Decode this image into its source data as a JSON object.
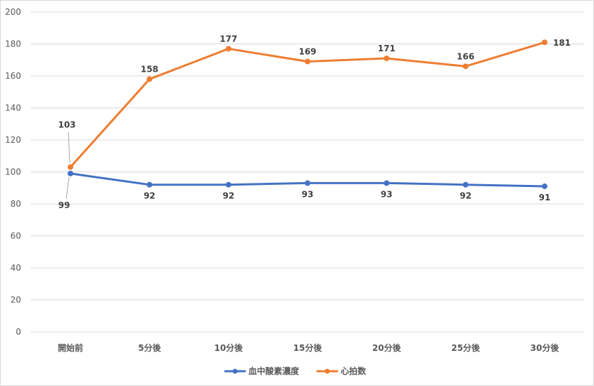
{
  "chart_data": {
    "type": "line",
    "title": "",
    "xlabel": "",
    "ylabel": "",
    "categories": [
      "開始前",
      "5分後",
      "10分後",
      "15分後",
      "20分後",
      "25分後",
      "30分後"
    ],
    "ylim": [
      0,
      200
    ],
    "yticks": [
      0,
      20,
      40,
      60,
      80,
      100,
      120,
      140,
      160,
      180,
      200
    ],
    "grid": true,
    "legend_position": "bottom",
    "series": [
      {
        "name": "血中酸素濃度",
        "values": [
          99,
          92,
          92,
          93,
          93,
          92,
          91
        ],
        "color": "#4472c4"
      },
      {
        "name": "心拍数",
        "values": [
          103,
          158,
          177,
          169,
          171,
          166,
          181
        ],
        "color": "#ed7d31"
      }
    ]
  }
}
